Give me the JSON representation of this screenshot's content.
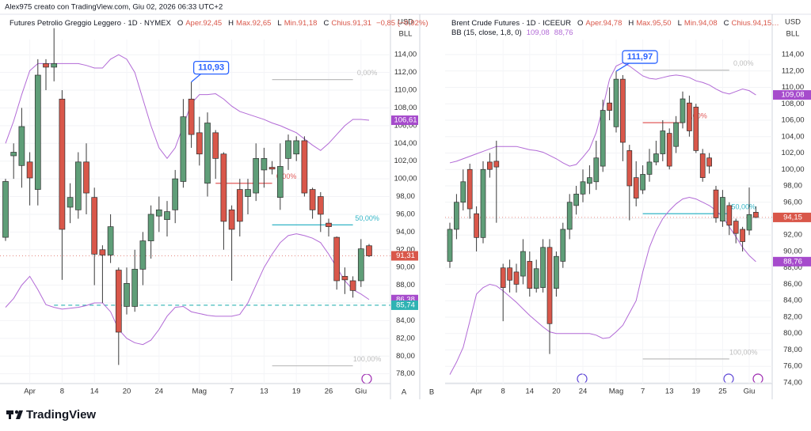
{
  "header": "Alex975 creato con TradingView.com, Giu 02, 2026 06:33 UTC+2",
  "brand": "TradingView",
  "pane_labels": [
    "A",
    "B"
  ],
  "chart_data": [
    {
      "type": "candlestick",
      "title": "Futures Petrolio Greggio Leggero · 1D · NYMEX",
      "legend": [
        {
          "key": "O",
          "value": "Aper.92,45"
        },
        {
          "key": "H",
          "value": "Max.92,65"
        },
        {
          "key": "L",
          "value": "Min.91,18"
        },
        {
          "key": "C",
          "value": "Chius.91,31"
        }
      ],
      "change": "−0,85 (−0,92%)",
      "axis_units": [
        "USD",
        "BLL"
      ],
      "up_color": "#5f9e78",
      "down_color": "#d9574a",
      "categories": [
        null,
        null,
        null,
        "Apr",
        null,
        null,
        null,
        "8",
        null,
        null,
        null,
        "14",
        null,
        null,
        null,
        "20",
        null,
        null,
        null,
        "24",
        null,
        null,
        null,
        null,
        "Mag",
        null,
        null,
        null,
        "7",
        null,
        null,
        null,
        "13",
        null,
        null,
        null,
        "19",
        null,
        null,
        null,
        "26",
        null,
        null,
        null,
        "Giu",
        null
      ],
      "open": [
        93.4,
        102.6,
        101.5,
        101.9,
        98.8,
        113,
        112.6,
        109,
        96.8,
        96.5,
        101.9,
        97.9,
        92,
        91.4,
        89.7,
        85.6,
        85.6,
        89.8,
        93,
        95.8,
        95.4,
        96.5,
        99.7,
        109,
        105.2,
        99.5,
        105.2,
        102.8,
        96.5,
        98.8,
        98,
        98.4,
        101,
        101.3,
        97.9,
        102.3,
        102.8,
        104.3,
        98.8,
        98,
        95,
        93.4,
        89,
        88.5,
        88.5,
        92.45
      ],
      "high": [
        100,
        104,
        108,
        103,
        113.5,
        113.5,
        117,
        110,
        99.5,
        103,
        104,
        99,
        92.5,
        96,
        90,
        90,
        92,
        94,
        97,
        98,
        97.5,
        101,
        109,
        110.93,
        107,
        107.5,
        105.5,
        103,
        97,
        100,
        100,
        104,
        103.5,
        102,
        104,
        105,
        104.8,
        104.8,
        99,
        98.5,
        95.5,
        93.5,
        90,
        89,
        93.2,
        92.65
      ],
      "low": [
        93,
        100,
        99,
        97,
        97,
        110,
        111,
        88.6,
        95,
        95.5,
        96,
        88,
        86,
        90.5,
        79,
        84.7,
        85,
        88,
        91,
        94,
        93.5,
        95,
        99,
        103.5,
        101.5,
        98,
        100,
        92,
        88.5,
        93.5,
        96,
        97.5,
        99,
        100.5,
        96.5,
        101,
        102,
        98,
        95.5,
        94,
        93.5,
        87.5,
        87,
        86.6,
        87.8,
        91.18
      ],
      "close": [
        99.7,
        103,
        105.9,
        100.1,
        111.7,
        112.6,
        113,
        94.3,
        97.9,
        101.9,
        98.4,
        91.5,
        91.4,
        94.6,
        82.7,
        88.2,
        89.8,
        93,
        96,
        96.5,
        96.3,
        100,
        107,
        105,
        102.8,
        106.3,
        102.3,
        95.2,
        94.3,
        95.2,
        98.8,
        102.3,
        102.3,
        101.1,
        101.4,
        104.3,
        104.3,
        98.4,
        96.5,
        96,
        94.6,
        88.5,
        88.6,
        87.4,
        92.1,
        91.31
      ],
      "bands": [
        {
          "color": "#b26ad6",
          "values": [
            104,
            106.5,
            109.5,
            112.2,
            113,
            113,
            113,
            113,
            113,
            113,
            112.8,
            112.5,
            112.5,
            113.5,
            114,
            113.5,
            112,
            109,
            106,
            103.5,
            102.3,
            103.5,
            106,
            108.5,
            109.5,
            109.5,
            109.6,
            109,
            108.2,
            107.6,
            107.3,
            107,
            106.7,
            106.3,
            106,
            105.6,
            105.2,
            104.5,
            103.8,
            103.2,
            104,
            105,
            106,
            106.7,
            106.7,
            106.61
          ]
        },
        {
          "color": "#b26ad6",
          "values": [
            85.5,
            86.5,
            88,
            89,
            87.5,
            85.8,
            85.5,
            85.3,
            85.4,
            85.5,
            85.7,
            86,
            86,
            85,
            83,
            82,
            81.5,
            81.3,
            81.8,
            83,
            84.5,
            85.5,
            85.6,
            85,
            84.8,
            84.6,
            84.5,
            84.5,
            84.5,
            84.7,
            86,
            88,
            90,
            91.5,
            92.8,
            93.6,
            93.8,
            93.6,
            93.3,
            92.8,
            91.5,
            90,
            88.5,
            87.5,
            87,
            86.38
          ]
        }
      ],
      "ylim": [
        76.9,
        117.5
      ],
      "yticks": [
        {
          "value": 114,
          "label": "114,00"
        },
        {
          "value": 112,
          "label": "112,00"
        },
        {
          "value": 110,
          "label": "110,00"
        },
        {
          "value": 108,
          "label": "108,00"
        },
        {
          "value": 106,
          "label": "106,00"
        },
        {
          "value": 104,
          "label": "104,00"
        },
        {
          "value": 102,
          "label": "102,00"
        },
        {
          "value": 100,
          "label": "100,00"
        },
        {
          "value": 98,
          "label": "98,00"
        },
        {
          "value": 96,
          "label": "96,00"
        },
        {
          "value": 94,
          "label": "94,00"
        },
        {
          "value": 92,
          "label": "92,00"
        },
        {
          "value": 90,
          "label": "90,00"
        },
        {
          "value": 88,
          "label": "88,00"
        },
        {
          "value": 86,
          "label": "86,00"
        },
        {
          "value": 84,
          "label": "84,00"
        },
        {
          "value": 82,
          "label": "82,00"
        },
        {
          "value": 80,
          "label": "80,00"
        },
        {
          "value": 78,
          "label": "78,00"
        }
      ],
      "grid": true,
      "price_labels": [
        {
          "value": 106.61,
          "label": "106,61",
          "color": "#a64bcc"
        },
        {
          "value": 91.31,
          "label": "91,31",
          "color": "#d9574a",
          "line": "dotted"
        },
        {
          "value": 86.38,
          "label": "86,38",
          "color": "#a64bcc"
        },
        {
          "value": 85.74,
          "label": "85,74",
          "color": "#2fb3b3",
          "line": "dashed"
        }
      ],
      "fib_levels": [
        {
          "label": "0,00%",
          "value": 111.2,
          "color": "#bdbdbd"
        },
        {
          "label": "0,00%",
          "value": 99.5,
          "color": "#e05a5a"
        },
        {
          "label": "50,00%",
          "value": 94.8,
          "color": "#33b5c6"
        },
        {
          "label": "100,00%",
          "value": 78.9,
          "color": "#bdbdbd"
        }
      ],
      "callout": {
        "label": "110,93",
        "value": 110.93
      }
    },
    {
      "type": "candlestick",
      "title": "Brent Crude Futures · 1D · ICEEUR",
      "legend": [
        {
          "key": "O",
          "value": "Aper.94,78"
        },
        {
          "key": "H",
          "value": "Max.95,50"
        },
        {
          "key": "L",
          "value": "Min.94,08"
        },
        {
          "key": "C",
          "value": "Chius.94,15…"
        }
      ],
      "bb_label": "BB (15, close, 1,8, 0)",
      "bb_values": [
        "109,08",
        "88,76"
      ],
      "axis_units": [
        "USD",
        "BLL"
      ],
      "up_color": "#5f9e78",
      "down_color": "#d9574a",
      "categories": [
        null,
        null,
        null,
        null,
        "Apr",
        null,
        null,
        null,
        "8",
        null,
        null,
        null,
        "14",
        null,
        null,
        null,
        "20",
        null,
        null,
        null,
        "24",
        null,
        null,
        null,
        null,
        "Mag",
        null,
        null,
        null,
        "7",
        null,
        null,
        null,
        "13",
        null,
        null,
        null,
        "19",
        null,
        null,
        null,
        "25",
        null,
        null,
        null,
        "Giu",
        null
      ],
      "open": [
        88.8,
        92.7,
        96,
        100,
        94.6,
        91.7,
        100.9,
        101,
        88,
        88,
        87.5,
        87,
        88.8,
        85.5,
        85.6,
        90.5,
        85.5,
        88.8,
        92.7,
        95.6,
        97,
        98.3,
        98.5,
        100.4,
        108.1,
        105.2,
        111,
        102.3,
        99,
        97.5,
        99.4,
        100.9,
        101.9,
        104.4,
        102.8,
        105.7,
        108.1,
        107.6,
        101.9,
        101.4,
        97.5,
        93.7,
        95.6,
        93.7,
        92.7,
        92.6,
        94.78
      ],
      "high": [
        93.5,
        97,
        100,
        100.7,
        95.5,
        101,
        102,
        103.5,
        88.5,
        89,
        88.5,
        91.5,
        90,
        89,
        91.5,
        91.5,
        90,
        93.5,
        97,
        98,
        100,
        100.5,
        103.5,
        108.5,
        110,
        111.97,
        111.5,
        103,
        101,
        100.5,
        102.5,
        103.5,
        106,
        105,
        106.5,
        109.5,
        109,
        108,
        102.5,
        102,
        98,
        97.5,
        96,
        94,
        93,
        97.8,
        95.5
      ],
      "low": [
        88,
        91.5,
        95,
        94,
        90,
        91,
        99,
        93.5,
        81.5,
        85,
        85,
        86,
        84.5,
        85,
        85,
        77.5,
        84.5,
        88,
        91.5,
        94.5,
        96,
        97,
        97.5,
        99.7,
        106,
        104.5,
        101,
        93.8,
        95.5,
        97,
        98.5,
        100.5,
        101,
        100,
        102,
        105,
        104,
        102,
        98.5,
        99.5,
        93.5,
        93,
        92,
        91,
        90,
        92,
        94.08
      ],
      "close": [
        92.7,
        96,
        98.5,
        95.2,
        91.7,
        100,
        100,
        100.3,
        85.6,
        86.5,
        86,
        90,
        85.5,
        87.9,
        90.5,
        81.2,
        89.4,
        92.7,
        96,
        97,
        98.5,
        99,
        101.4,
        107.2,
        107.2,
        111,
        103.3,
        98,
        96.5,
        99.4,
        100.9,
        101.9,
        104.7,
        100.4,
        105.7,
        108.6,
        104.7,
        102.3,
        99,
        100.4,
        94.1,
        96.6,
        93.2,
        92.2,
        91.2,
        94.5,
        94.15
      ],
      "bands": [
        {
          "color": "#b26ad6",
          "values": [
            100.8,
            101,
            101.3,
            101.6,
            101.9,
            102.2,
            102.5,
            102.8,
            102.8,
            102.8,
            102.8,
            102.6,
            102.4,
            102.3,
            102.1,
            101.7,
            101.3,
            100.8,
            100.4,
            100.6,
            101.5,
            102.5,
            104.5,
            107.5,
            111,
            112.6,
            113,
            112.6,
            112,
            111.4,
            111.1,
            111,
            111.2,
            111.4,
            111.5,
            111.4,
            111.2,
            110.8,
            110.6,
            110.3,
            109.8,
            109.4,
            109.2,
            109.5,
            109.8,
            109.6,
            109.08
          ]
        },
        {
          "color": "#b26ad6",
          "values": [
            75,
            76.5,
            78.3,
            81.5,
            84.8,
            85.6,
            86,
            85.8,
            85.2,
            84.5,
            83.8,
            83,
            82.2,
            81.5,
            80.8,
            80.2,
            80,
            80,
            80,
            80,
            80,
            80,
            79.8,
            79.4,
            79.5,
            80.2,
            81,
            82.5,
            84,
            87.5,
            90.5,
            92.5,
            94,
            95,
            95.8,
            96.4,
            96.6,
            96.4,
            96,
            95.6,
            95,
            94.2,
            93,
            91.8,
            90.5,
            89.5,
            88.76
          ]
        }
      ],
      "ylim": [
        73.9,
        117.76
      ],
      "yticks": [
        {
          "value": 114,
          "label": "114,00"
        },
        {
          "value": 112,
          "label": "112,00"
        },
        {
          "value": 110,
          "label": "110,00"
        },
        {
          "value": 108,
          "label": "108,00"
        },
        {
          "value": 106,
          "label": "106,00"
        },
        {
          "value": 104,
          "label": "104,00"
        },
        {
          "value": 102,
          "label": "102,00"
        },
        {
          "value": 100,
          "label": "100,00"
        },
        {
          "value": 98,
          "label": "98,00"
        },
        {
          "value": 96,
          "label": "96,00"
        },
        {
          "value": 94,
          "label": "94,00"
        },
        {
          "value": 92,
          "label": "92,00"
        },
        {
          "value": 90,
          "label": "90,00"
        },
        {
          "value": 88,
          "label": "88,00"
        },
        {
          "value": 86,
          "label": "86,00"
        },
        {
          "value": 84,
          "label": "84,00"
        },
        {
          "value": 82,
          "label": "82,00"
        },
        {
          "value": 80,
          "label": "80,00"
        },
        {
          "value": 78,
          "label": "78,00"
        },
        {
          "value": 76,
          "label": "76,00"
        },
        {
          "value": 74,
          "label": "74,00"
        }
      ],
      "grid": true,
      "price_labels": [
        {
          "value": 109.08,
          "label": "109,08",
          "color": "#a64bcc"
        },
        {
          "value": 94.15,
          "label": "94,15",
          "color": "#d9574a",
          "line": "dotted"
        },
        {
          "value": 88.76,
          "label": "88,76",
          "color": "#a64bcc"
        }
      ],
      "fib_levels": [
        {
          "label": "0,00%",
          "value": 112.1,
          "color": "#bdbdbd"
        },
        {
          "label": "0,00%",
          "value": 105.7,
          "color": "#e05a5a"
        },
        {
          "label": "50,00%",
          "value": 94.6,
          "color": "#33b5c6"
        },
        {
          "label": "100,00%",
          "value": 76.9,
          "color": "#bdbdbd"
        }
      ],
      "callout": {
        "label": "111,97",
        "value": 111.97
      }
    }
  ]
}
